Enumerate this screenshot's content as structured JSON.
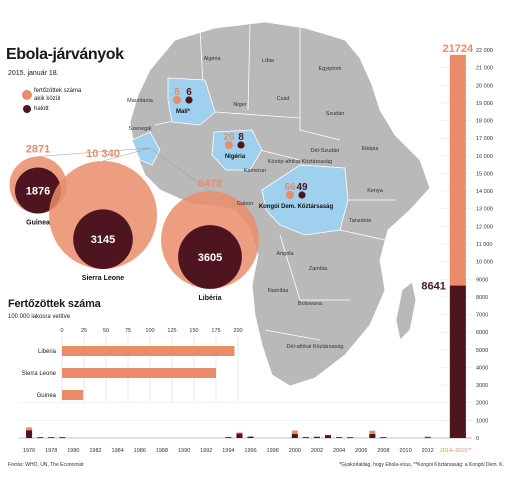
{
  "header": {
    "title": "Ebola-járványok",
    "date": "2015. január 18."
  },
  "legend": {
    "infected_label": "fertőzöttek száma",
    "infected_sublabel": "akik közül",
    "dead_label": "halott"
  },
  "colors": {
    "infected": "#ea8c6a",
    "dead": "#4e1520",
    "map_land": "#b9b9b9",
    "map_highlight": "#9fd0ee",
    "map_ocean": "#ffffff"
  },
  "map_labels": [
    "Algéria",
    "Líbia",
    "Egyiptom",
    "Mauritánia",
    "Niger",
    "Csád",
    "Szudán",
    "Dél-Szudán",
    "Etiópia",
    "Kamerun",
    "Gabon",
    "Kenya",
    "Tanzánia",
    "Angola",
    "Zambia",
    "Namíbia",
    "Botswana",
    "Dél-afrikai Köztársaság",
    "Közép-afrikai Köztársaság",
    "Szenegál"
  ],
  "map_outbreaks": [
    {
      "country": "Mali*",
      "infected": "8",
      "dead": "6"
    },
    {
      "country": "Nigéria",
      "infected": "20",
      "dead": "8"
    },
    {
      "country": "Kongói Dem. Köztársaság",
      "infected": "66",
      "dead": "49"
    }
  ],
  "bubbles": [
    {
      "country": "Guinea",
      "infected": "2871",
      "dead": "1876"
    },
    {
      "country": "Sierra Leone",
      "infected": "10 340",
      "dead": "3145"
    },
    {
      "country": "Libéria",
      "infected": "8478",
      "dead": "3605"
    }
  ],
  "bars_section": {
    "title": "Fertőzöttek száma",
    "subtitle": "100 000 lakosra vetítve"
  },
  "source": "Forrás: WHO, UN, The Economist",
  "footnote": "*Gyakorlatilag, hogy Ebola-vírus, **Kongói Köztársaság: a Kongói Dem. K.",
  "chart_data": [
    {
      "type": "bar",
      "title": "Fertőzöttek száma",
      "subtitle": "100 000 lakosra vetítve",
      "orientation": "horizontal",
      "categories": [
        "Libéria",
        "Sierra Leone",
        "Guinea"
      ],
      "values": [
        196,
        175,
        24
      ],
      "xlim": [
        0,
        200
      ],
      "xticks": [
        0,
        25,
        50,
        75,
        100,
        125,
        150,
        175,
        200
      ],
      "grid": false,
      "bar_color": "#ea8c6a"
    },
    {
      "type": "bar",
      "stacked": true,
      "series": [
        {
          "name": "fertőzöttek száma",
          "color": "#ea8c6a"
        },
        {
          "name": "halott",
          "color": "#4e1520"
        }
      ],
      "x": [
        1976,
        1977,
        1978,
        1979,
        1994,
        1995,
        1996,
        2000,
        2001,
        2002,
        2003,
        2004,
        2005,
        2007,
        2008,
        2012,
        2014
      ],
      "x_tick_labels": [
        "1976",
        "1978",
        "1980",
        "1982",
        "1984",
        "1986",
        "1988",
        "1990",
        "1992",
        "1994",
        "1996",
        "1998",
        "2000",
        "2002",
        "2004",
        "2006",
        "2008",
        "2010",
        "2012",
        "2014–2015**"
      ],
      "infected": [
        602,
        1,
        0,
        34,
        52,
        315,
        97,
        425,
        59,
        90,
        178,
        17,
        12,
        413,
        32,
        81,
        21724
      ],
      "dead": [
        431,
        1,
        0,
        22,
        31,
        254,
        66,
        224,
        44,
        53,
        157,
        7,
        10,
        224,
        14,
        36,
        8641
      ],
      "labels": {
        "infected_2014": "21724",
        "dead_2014": "8641"
      },
      "ylim": [
        0,
        22000
      ],
      "yticks": [
        0,
        1000,
        2000,
        3000,
        4000,
        5000,
        6000,
        7000,
        8000,
        9000,
        10000,
        11000,
        12000,
        13000,
        14000,
        15000,
        16000,
        17000,
        18000,
        19000,
        20000,
        21000,
        22000
      ],
      "y_tick_labels": [
        "0",
        "1000",
        "2000",
        "3000",
        "4000",
        "5000",
        "6000",
        "7000",
        "8000",
        "9000",
        "10 000",
        "11 000",
        "12 000",
        "13 000",
        "14 000",
        "15 000",
        "16 000",
        "17 000",
        "18 000",
        "19 000",
        "20 000",
        "21 000",
        "22 000"
      ],
      "grid": true
    }
  ]
}
